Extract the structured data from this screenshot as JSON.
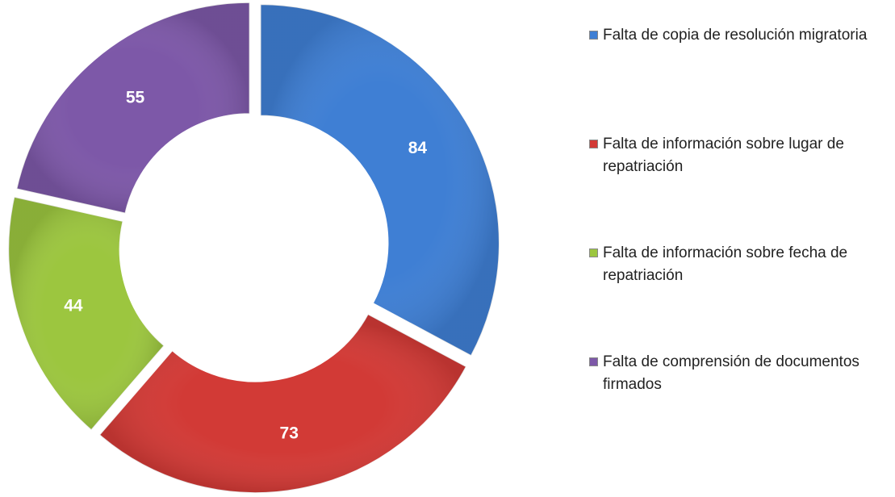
{
  "chart_data": {
    "type": "doughnut",
    "categories": [
      "Falta de copia de resolución migratoria",
      "Falta de información sobre lugar de repatriación",
      "Falta de información sobre fecha de repatriación",
      "Falta de comprensión de documentos firmados"
    ],
    "values": [
      84,
      73,
      44,
      55
    ],
    "colors": [
      "#3f7fd4",
      "#d23a36",
      "#9cc63f",
      "#7d58a8"
    ],
    "legend": "right"
  }
}
